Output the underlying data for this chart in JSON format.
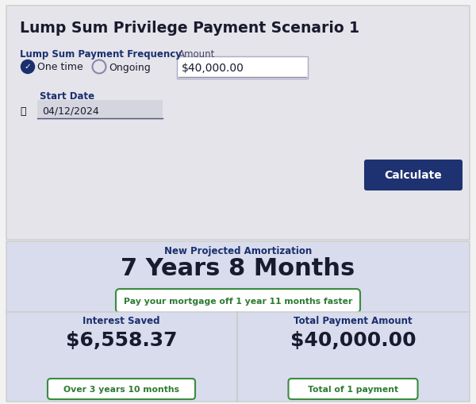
{
  "title": "Lump Sum Privilege Payment Scenario 1",
  "freq_label": "Lump Sum Payment Frequency",
  "option1": "One time",
  "option2": "Ongoing",
  "amount_label": "Amount",
  "amount_value": "$40,000.00",
  "start_date_label": "Start Date",
  "start_date_value": "04/12/2024",
  "calc_button_text": "Calculate",
  "amort_label": "New Projected Amortization",
  "amort_value": "7 Years 8 Months",
  "faster_text": "Pay your mortgage off 1 year 11 months faster",
  "interest_label": "Interest Saved",
  "interest_value": "$6,558.37",
  "interest_sub": "Over 3 years 10 months",
  "payment_label": "Total Payment Amount",
  "payment_value": "$40,000.00",
  "payment_sub": "Total of 1 payment",
  "bg_top": "#e4e4ea",
  "bg_bottom": "#d8dcec",
  "white": "#ffffff",
  "dark_blue": "#1a2f6e",
  "navy_btn": "#1e3272",
  "green_border": "#3a8c3f",
  "green_text": "#2d7a32",
  "text_dark": "#1a1a2e",
  "label_blue": "#1a2f6e",
  "divider": "#c0c0cc"
}
